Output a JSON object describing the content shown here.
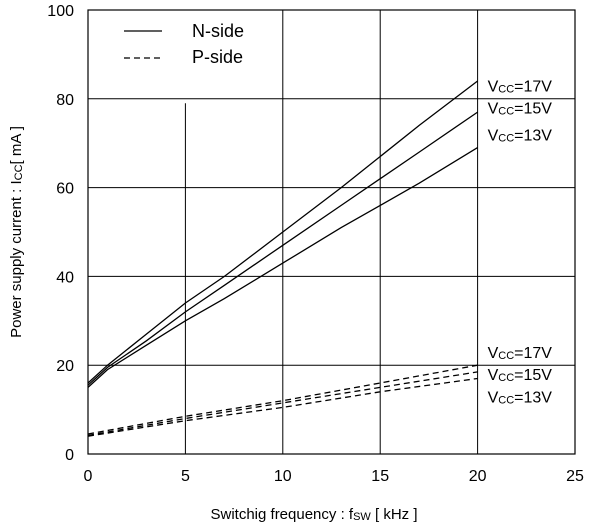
{
  "chart_data": {
    "type": "line",
    "title": "",
    "xlabel": {
      "main": "Switchig frequency  :  f",
      "sub": "SW",
      "unit": " [ kHz ]"
    },
    "ylabel": {
      "main": "Power supply current : I",
      "sub": "CC",
      "unit": "[ mA ]"
    },
    "xlim": [
      0,
      25
    ],
    "ylim": [
      0,
      100
    ],
    "x_ticks": [
      "0",
      "5",
      "10",
      "15",
      "20",
      "25"
    ],
    "y_ticks": [
      "0",
      "20",
      "40",
      "60",
      "80",
      "100"
    ],
    "grid": true,
    "legend": {
      "placement": "top-left",
      "entries": [
        {
          "label": "N-side",
          "dash": "solid"
        },
        {
          "label": "P-side",
          "dash": "dashed"
        }
      ]
    },
    "series": [
      {
        "name": "N-side Vcc=17V",
        "dash": "solid",
        "x": [
          0,
          1,
          3,
          5,
          7,
          10,
          13,
          15,
          17,
          20
        ],
        "y": [
          16,
          20,
          27,
          34,
          40,
          50,
          60,
          67,
          74,
          84
        ]
      },
      {
        "name": "N-side Vcc=15V",
        "dash": "solid",
        "x": [
          0,
          1,
          3,
          5,
          7,
          10,
          13,
          15,
          17,
          20
        ],
        "y": [
          15.5,
          19.5,
          25.5,
          32,
          38,
          47,
          56,
          62,
          68,
          77
        ]
      },
      {
        "name": "N-side Vcc=13V",
        "dash": "solid",
        "x": [
          0,
          1,
          3,
          5,
          7,
          10,
          13,
          15,
          17,
          20
        ],
        "y": [
          15,
          19,
          24.5,
          30,
          35,
          43,
          51,
          56,
          61,
          69
        ]
      },
      {
        "name": "P-side Vcc=17V",
        "dash": "dashed",
        "x": [
          0,
          5,
          10,
          15,
          20
        ],
        "y": [
          4.5,
          8.5,
          12,
          16,
          20
        ]
      },
      {
        "name": "P-side Vcc=15V",
        "dash": "dashed",
        "x": [
          0,
          5,
          10,
          15,
          20
        ],
        "y": [
          4.2,
          8,
          11.5,
          15,
          18.5
        ]
      },
      {
        "name": "P-side Vcc=13V",
        "dash": "dashed",
        "x": [
          0,
          5,
          10,
          15,
          20
        ],
        "y": [
          4,
          7.5,
          10.5,
          14,
          17
        ]
      }
    ],
    "annotations": [
      {
        "main": "V",
        "sub": "CC",
        "rest": "=17V",
        "x": 20,
        "y": 83
      },
      {
        "main": "V",
        "sub": "CC",
        "rest": "=15V",
        "x": 20,
        "y": 78
      },
      {
        "main": "V",
        "sub": "CC",
        "rest": "=13V",
        "x": 20,
        "y": 72
      },
      {
        "main": "V",
        "sub": "CC",
        "rest": "=17V",
        "x": 20,
        "y": 23
      },
      {
        "main": "V",
        "sub": "CC",
        "rest": "=15V",
        "x": 20,
        "y": 18
      },
      {
        "main": "V",
        "sub": "CC",
        "rest": "=13V",
        "x": 20,
        "y": 13
      }
    ]
  }
}
